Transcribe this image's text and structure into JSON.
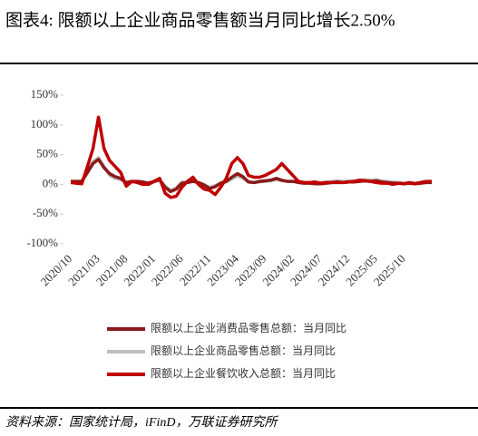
{
  "chart_data": {
    "type": "line",
    "title": "图表4:  限额以上企业商品零售额当月同比增长2.50%",
    "source": "资料来源：国家统计局，iFinD，万联证券研究所",
    "categories": [
      "2020/10",
      null,
      null,
      null,
      null,
      "2021/03",
      null,
      null,
      null,
      null,
      "2021/08",
      null,
      null,
      null,
      null,
      "2022/01",
      null,
      null,
      null,
      null,
      "2022/06",
      null,
      null,
      null,
      null,
      "2022/11",
      null,
      null,
      null,
      null,
      "2023/04",
      null,
      null,
      null,
      null,
      "2023/09",
      null,
      null,
      null,
      null,
      "2024/02",
      null,
      null,
      null,
      null,
      "2024/07",
      null,
      null,
      null,
      null,
      "2024/12",
      null,
      null,
      null,
      null,
      "2025/05",
      null,
      null,
      null,
      null,
      "2025/10",
      null,
      null,
      null,
      null,
      null
    ],
    "ylim": [
      -100,
      150
    ],
    "yticks": [
      {
        "value": -100,
        "label": "-100%"
      },
      {
        "value": -50,
        "label": "-50%"
      },
      {
        "value": 0,
        "label": "0%"
      },
      {
        "value": 50,
        "label": "50%"
      },
      {
        "value": 100,
        "label": "100%"
      },
      {
        "value": 150,
        "label": "150%"
      }
    ],
    "series": [
      {
        "name": "限额以上企业消费品零售总额：当月同比",
        "color": "#8b1a1a",
        "values": [
          5,
          5,
          5,
          20,
          35,
          42,
          28,
          18,
          13,
          10,
          3,
          5,
          5,
          4,
          2,
          5,
          8,
          -5,
          -12,
          -8,
          2,
          3,
          5,
          3,
          -1,
          -7,
          -4,
          2,
          5,
          12,
          18,
          13,
          4,
          3,
          5,
          6,
          7,
          10,
          7,
          5,
          5,
          3,
          2,
          2,
          1,
          1,
          2,
          3,
          4,
          3,
          4,
          4,
          5,
          6,
          5,
          6,
          4,
          3,
          2,
          2,
          1,
          2,
          1,
          2,
          3,
          3
        ]
      },
      {
        "name": "限额以上企业商品零售总额：当月同比",
        "color": "#bfbfbf",
        "values": [
          5,
          5,
          5,
          22,
          38,
          45,
          30,
          15,
          10,
          8,
          2,
          4,
          5,
          4,
          2,
          4,
          7,
          -3,
          -10,
          -6,
          4,
          4,
          5,
          3,
          0,
          -5,
          -2,
          2,
          4,
          9,
          14,
          10,
          4,
          3,
          4,
          5,
          6,
          8,
          6,
          5,
          5,
          4,
          3,
          3,
          2,
          3,
          4,
          5,
          6,
          5,
          6,
          6,
          7,
          8,
          7,
          8,
          6,
          5,
          4,
          3,
          2,
          3,
          2,
          3,
          4,
          4
        ]
      },
      {
        "name": "限额以上企业餐饮收入总额：当月同比",
        "color": "#c00000",
        "values": [
          3,
          2,
          1,
          30,
          60,
          113,
          60,
          40,
          30,
          20,
          -3,
          5,
          3,
          0,
          0,
          5,
          10,
          -15,
          -22,
          -20,
          -5,
          5,
          12,
          0,
          -8,
          -10,
          -17,
          -5,
          10,
          35,
          45,
          35,
          15,
          12,
          12,
          15,
          20,
          25,
          35,
          25,
          15,
          5,
          3,
          3,
          4,
          2,
          3,
          3,
          3,
          3,
          4,
          5,
          7,
          6,
          5,
          3,
          2,
          2,
          0,
          2,
          1,
          3,
          1,
          3,
          5,
          5
        ]
      }
    ]
  }
}
